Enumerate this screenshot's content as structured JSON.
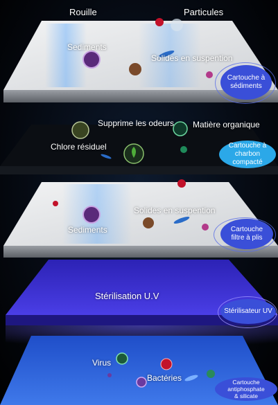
{
  "stages": {
    "sediment": {
      "labels": {
        "rouille": "Rouille",
        "particules": "Particules",
        "sediments": "Sediments",
        "solides": "Solides en suspention"
      },
      "cartridge": {
        "line1": "Cartouche à",
        "line2": "sédiments"
      }
    },
    "carbon": {
      "labels": {
        "odeurs": "Supprime les odeurs",
        "organique": "Matière organique",
        "chlore": "Chlore résiduel"
      },
      "cartridge": {
        "line1": "Cartouche  à",
        "line2": "charbon compacté"
      }
    },
    "pleated": {
      "labels": {
        "solides": "Solides en suspention",
        "sediments": "Sediments"
      },
      "cartridge": {
        "line1": "Cartouche",
        "line2": "filtre à plis"
      }
    },
    "uv": {
      "title": "Stérilisation U.V",
      "cartridge": {
        "line1": "Stérilisateur UV"
      }
    },
    "antiphosphate": {
      "labels": {
        "virus": "Virus",
        "bacteries": "Bactéries"
      },
      "cartridge": {
        "line1": "Cartouche antiphosphate",
        "line2": "& silicate"
      }
    }
  },
  "colors": {
    "plate_top": "#e4e5e7",
    "uv_violet": "#3b2fd0",
    "badge_blue": "#3a4fd8",
    "badge_cyan": "#2ba8e8"
  }
}
